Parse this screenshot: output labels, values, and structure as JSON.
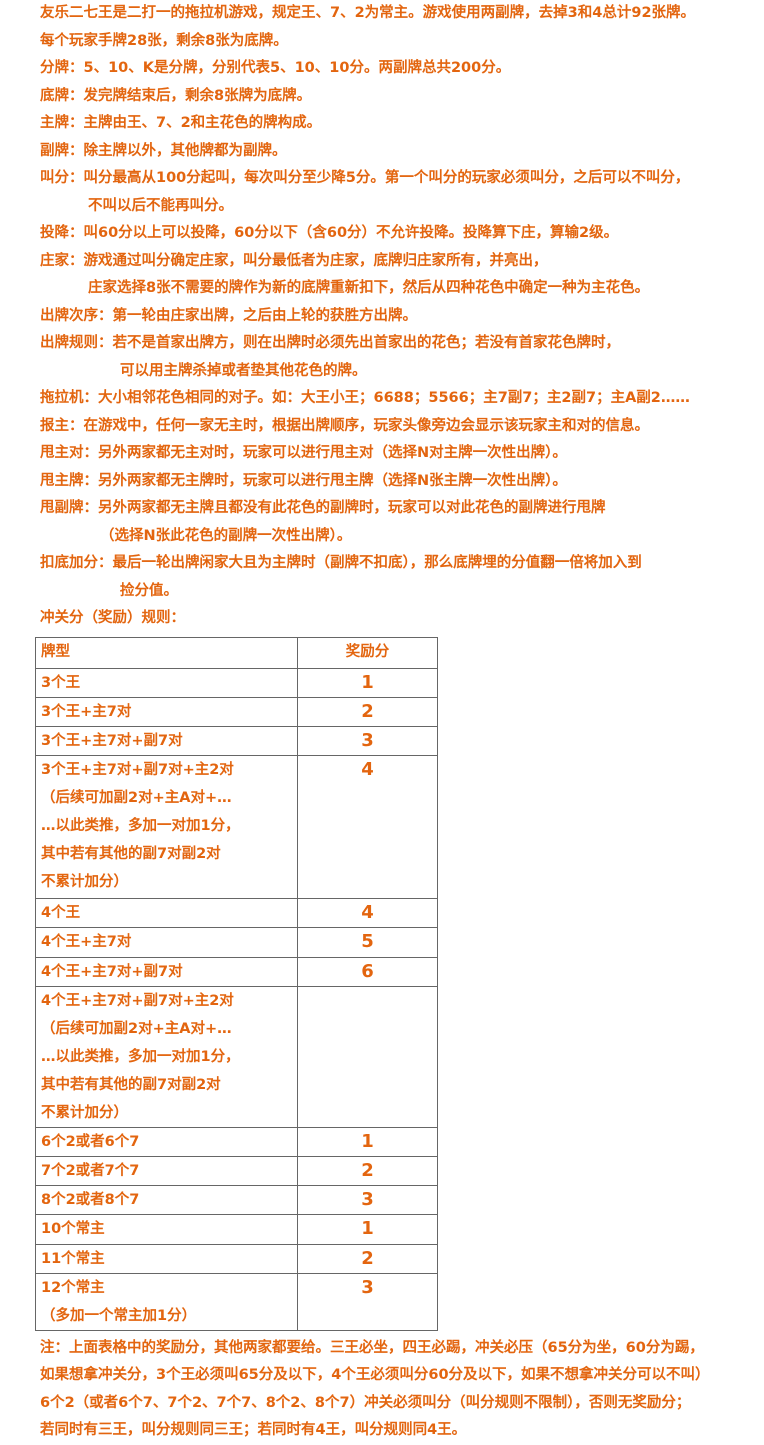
{
  "intro": [
    "友乐二七王是二打一的拖拉机游戏，规定王、7、2为常主。游戏使用两副牌，去掉3和4总计92张牌。",
    "每个玩家手牌28张，剩余8张为底牌。"
  ],
  "rules": [
    {
      "text": "分牌：5、10、K是分牌，分别代表5、10、10分。两副牌总共200分。"
    },
    {
      "text": "底牌：发完牌结束后，剩余8张牌为底牌。"
    },
    {
      "text": "主牌：主牌由王、7、2和主花色的牌构成。"
    },
    {
      "text": "副牌：除主牌以外，其他牌都为副牌。"
    },
    {
      "text": "叫分：叫分最高从100分起叫，每次叫分至少降5分。第一个叫分的玩家必须叫分，之后可以不叫分，",
      "cont": "不叫以后不能再叫分。"
    },
    {
      "text": "投降：叫60分以上可以投降，60分以下（含60分）不允许投降。投降算下庄，算输2级。"
    },
    {
      "text": "庄家：游戏通过叫分确定庄家，叫分最低者为庄家，底牌归庄家所有，并亮出，",
      "cont": "庄家选择8张不需要的牌作为新的底牌重新扣下，然后从四种花色中确定一种为主花色。"
    },
    {
      "text": "出牌次序：第一轮由庄家出牌，之后由上轮的获胜方出牌。"
    },
    {
      "text": "出牌规则：若不是首家出牌方，则在出牌时必须先出首家出的花色；若没有首家花色牌时，",
      "cont": "可以用主牌杀掉或者垫其他花色的牌。"
    },
    {
      "text": "拖拉机：大小相邻花色相同的对子。如：大王小王；6688；5566；主7副7；主2副7；主A副2……"
    },
    {
      "text": "报主：在游戏中，任何一家无主时，根据出牌顺序，玩家头像旁边会显示该玩家主和对的信息。"
    },
    {
      "text": "甩主对：另外两家都无主对时，玩家可以进行甩主对（选择N对主牌一次性出牌）。"
    },
    {
      "text": "甩主牌：另外两家都无主牌时，玩家可以进行甩主牌（选择N张主牌一次性出牌）。"
    },
    {
      "text": "甩副牌：另外两家都无主牌且都没有此花色的副牌时，玩家可以对此花色的副牌进行甩牌",
      "cont": "（选择N张此花色的副牌一次性出牌）。"
    },
    {
      "text": "扣底加分：最后一轮出牌闲家大且为主牌时（副牌不扣底），那么底牌埋的分值翻一倍将加入到",
      "cont": "捡分值。"
    }
  ],
  "table_title": "冲关分（奖励）规则：",
  "table": {
    "headers": [
      "牌型",
      "奖励分"
    ],
    "rows": [
      {
        "type": [
          "3个王"
        ],
        "score": "1"
      },
      {
        "type": [
          "3个王+主7对"
        ],
        "score": "2"
      },
      {
        "type": [
          "3个王+主7对+副7对"
        ],
        "score": "3"
      },
      {
        "type": [
          "3个王+主7对+副7对+主2对",
          "（后续可加副2对+主A对+…",
          "…以此类推，多加一对加1分，",
          "其中若有其他的副7对副2对",
          "不累计加分）"
        ],
        "score": "4"
      },
      {
        "type": [
          "4个王"
        ],
        "score": "4"
      },
      {
        "type": [
          "4个王+主7对"
        ],
        "score": "5"
      },
      {
        "type": [
          "4个王+主7对+副7对"
        ],
        "score": "6"
      },
      {
        "type": [
          "4个王+主7对+副7对+主2对",
          "（后续可加副2对+主A对+…",
          "…以此类推，多加一对加1分，",
          "其中若有其他的副7对副2对",
          "不累计加分）"
        ],
        "score": ""
      },
      {
        "type": [
          "6个2或者6个7"
        ],
        "score": "1"
      },
      {
        "type": [
          "7个2或者7个7"
        ],
        "score": "2"
      },
      {
        "type": [
          "8个2或者8个7"
        ],
        "score": "3"
      },
      {
        "type": [
          "10个常主"
        ],
        "score": "1"
      },
      {
        "type": [
          "11个常主"
        ],
        "score": "2"
      },
      {
        "type": [
          "12个常主",
          "（多加一个常主加1分）"
        ],
        "score": "3"
      }
    ]
  },
  "notes": [
    "注：上面表格中的奖励分，其他两家都要给。三王必坐，四王必踢，冲关必压（65分为坐，60分为踢，",
    "如果想拿冲关分，3个王必须叫65分及以下，4个王必须叫分60分及以下，如果不想拿冲关分可以不叫）",
    "6个2（或者6个7、7个2、7个7、8个2、8个7）冲关必须叫分（叫分规则不限制），否则无奖励分；",
    "若同时有三王，叫分规则同三王；若同时有4王，叫分规则同4王。"
  ],
  "colors": {
    "text": "#e3650f",
    "border": "#666666"
  }
}
